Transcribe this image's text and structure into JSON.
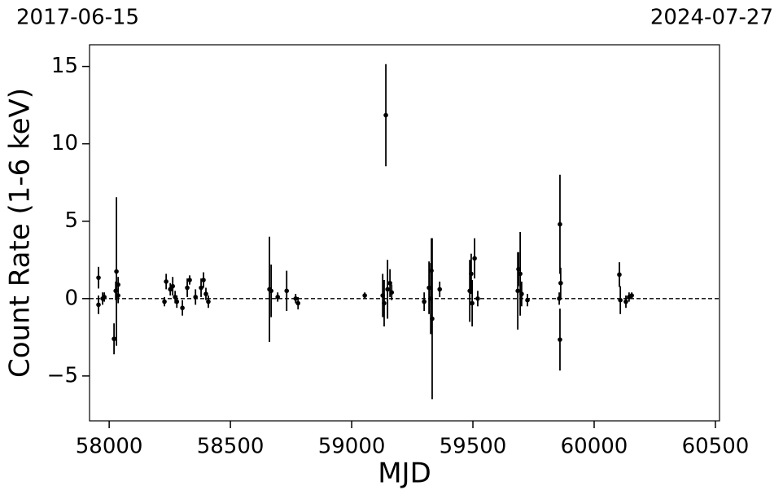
{
  "chart_data": {
    "type": "errorbar",
    "date_start": "2017-06-15",
    "date_end": "2024-07-27",
    "xlabel": "MJD",
    "ylabel": "Count Rate (1-6 keV)",
    "color": "#000000",
    "hline": 0,
    "xlim": [
      57919,
      60517
    ],
    "ylim": [
      -7.9,
      16.4
    ],
    "xticks": [
      58000,
      58500,
      59000,
      59500,
      60000,
      60500
    ],
    "yticks": [
      {
        "value": -5,
        "label": "−5"
      },
      0,
      5,
      10,
      15
    ],
    "x": [
      57956,
      57956,
      57973,
      57980,
      58020,
      58027,
      58030,
      58037,
      58037,
      58228,
      58235,
      58252,
      58262,
      58272,
      58279,
      58302,
      58322,
      58332,
      58356,
      58379,
      58389,
      58399,
      58409,
      58661,
      58668,
      58695,
      58732,
      58769,
      58779,
      59054,
      59128,
      59134,
      59141,
      59148,
      59158,
      59165,
      59299,
      59319,
      59326,
      59329,
      59332,
      59363,
      59487,
      59493,
      59497,
      59507,
      59520,
      59685,
      59688,
      59695,
      59701,
      59725,
      59856,
      59859,
      59859,
      59862,
      60104,
      60108,
      60131,
      60144,
      60155
    ],
    "values": [
      1.35,
      -0.4,
      0.0,
      0.1,
      -2.6,
      0.5,
      1.75,
      0.9,
      0.2,
      -0.2,
      1.1,
      0.6,
      0.8,
      0.1,
      -0.2,
      -0.6,
      0.7,
      1.2,
      0.1,
      0.7,
      1.2,
      0.3,
      -0.2,
      0.6,
      0.5,
      0.1,
      0.5,
      0.0,
      -0.3,
      0.2,
      0.2,
      -0.3,
      11.85,
      0.6,
      1.0,
      0.4,
      -0.2,
      0.7,
      0.0,
      1.8,
      -1.3,
      0.6,
      0.5,
      1.6,
      -0.3,
      2.6,
      0.0,
      0.5,
      1.9,
      1.6,
      0.3,
      -0.1,
      0.0,
      4.8,
      -2.65,
      1.0,
      1.55,
      -0.1,
      -0.2,
      0.1,
      0.2
    ],
    "errors": [
      0.7,
      0.6,
      0.4,
      0.3,
      1.0,
      0.6,
      4.8,
      0.5,
      0.5,
      0.3,
      0.5,
      0.4,
      0.6,
      0.4,
      0.4,
      0.5,
      0.6,
      0.3,
      0.5,
      0.6,
      0.5,
      0.4,
      0.4,
      3.4,
      1.7,
      0.3,
      1.3,
      0.3,
      0.4,
      0.2,
      1.4,
      1.5,
      3.3,
      1.9,
      0.9,
      0.5,
      0.6,
      1.7,
      2.3,
      2.1,
      5.2,
      0.5,
      2.0,
      1.3,
      1.5,
      1.3,
      0.5,
      2.5,
      1.1,
      2.7,
      0.8,
      0.4,
      0.4,
      3.2,
      2.0,
      1.0,
      0.8,
      0.9,
      0.4,
      0.3,
      0.2
    ]
  }
}
